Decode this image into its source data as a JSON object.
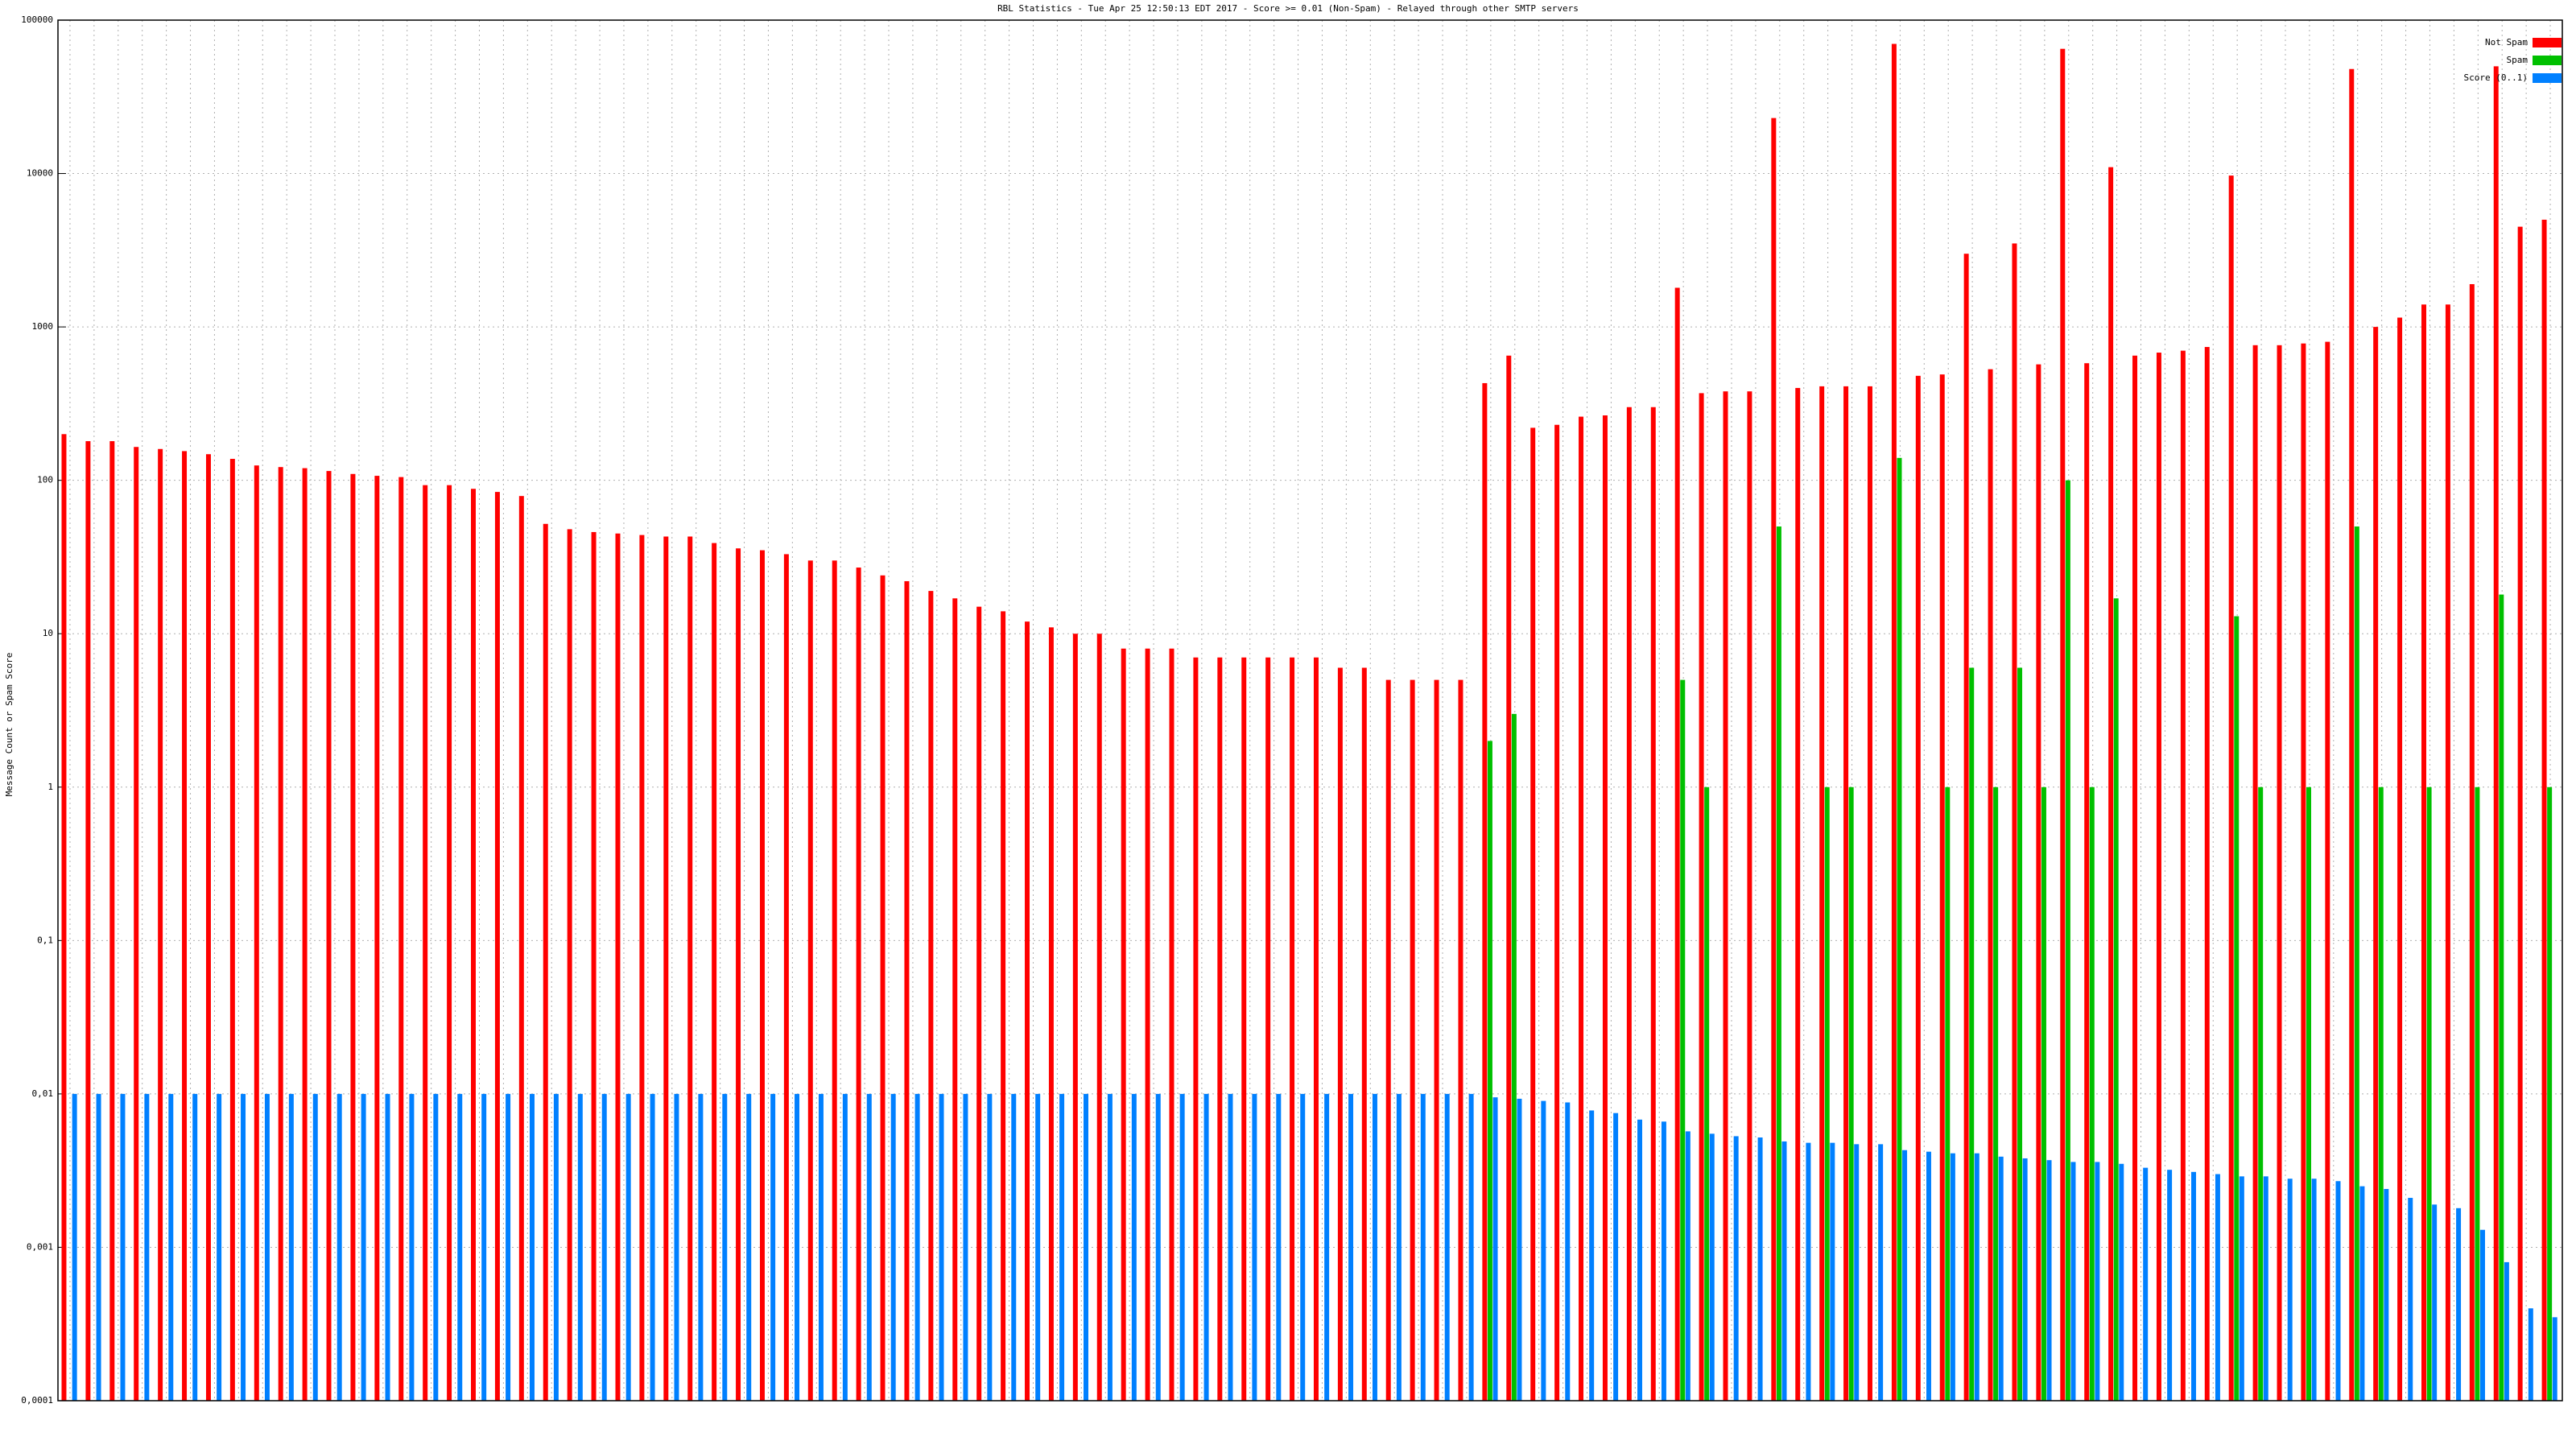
{
  "chart_data": {
    "type": "bar",
    "title": "RBL Statistics - Tue Apr 25 12:50:13 EDT 2017 - Score >= 0.01 (Non-Spam) - Relayed through other SMTP servers",
    "y_label": "Message Count or Spam Score",
    "log_y": true,
    "grid": true,
    "legend": "top-right",
    "ylim": [
      0.0001,
      100000
    ],
    "yticks": [
      {
        "value": 0.0001,
        "label": "0,0001"
      },
      {
        "value": 0.001,
        "label": "0,001"
      },
      {
        "value": 0.01,
        "label": "0,01"
      },
      {
        "value": 0.1,
        "label": "0,1"
      },
      1,
      10,
      100,
      1000,
      10000,
      100000
    ],
    "categories": [
      null,
      null,
      null,
      null,
      null,
      null,
      null,
      null,
      null,
      null,
      null,
      null,
      null,
      null,
      null,
      null,
      null,
      null,
      null,
      null,
      null,
      null,
      null,
      null,
      null,
      null,
      null,
      null,
      null,
      null,
      null,
      null,
      null,
      null,
      null,
      null,
      null,
      null,
      null,
      null,
      null,
      null,
      null,
      null,
      null,
      null,
      null,
      null,
      null,
      null,
      null,
      null,
      null,
      null,
      null,
      null,
      null,
      null,
      null,
      null,
      null,
      null,
      null,
      null,
      null,
      null,
      null,
      null,
      null,
      null,
      null,
      null,
      null,
      null,
      null,
      null,
      null,
      null,
      null,
      null,
      null,
      null,
      null,
      null,
      null,
      null,
      null,
      null,
      null,
      null,
      null,
      null,
      null,
      null,
      null,
      null,
      null,
      null,
      null,
      null,
      null,
      null,
      null,
      null
    ],
    "series": [
      {
        "name": "Not Spam",
        "color": "#ff0000",
        "values": [
          200,
          180,
          180,
          165,
          160,
          155,
          148,
          138,
          125,
          122,
          120,
          115,
          110,
          107,
          105,
          93,
          93,
          88,
          84,
          79,
          52,
          48,
          46,
          45,
          44,
          43,
          43,
          39,
          36,
          35,
          33,
          30,
          30,
          27,
          24,
          22,
          19,
          17,
          15,
          14,
          12,
          11,
          10,
          10,
          8,
          8,
          8,
          7,
          7,
          7,
          7,
          7,
          7,
          6,
          6,
          5,
          5,
          5,
          5,
          430,
          650,
          220,
          230,
          260,
          265,
          300,
          300,
          1800,
          370,
          380,
          380,
          23000,
          400,
          410,
          410,
          410,
          70000,
          480,
          490,
          3000,
          530,
          3500,
          570,
          65000,
          580,
          11000,
          650,
          680,
          700,
          740,
          9700,
          760,
          760,
          780,
          800,
          48000,
          1000,
          1150,
          1400,
          1400,
          1900,
          50000,
          4500,
          5000
        ]
      },
      {
        "name": "Spam",
        "color": "#00c000",
        "values": [
          null,
          null,
          null,
          null,
          null,
          null,
          null,
          null,
          null,
          null,
          null,
          null,
          null,
          null,
          null,
          null,
          null,
          null,
          null,
          null,
          null,
          null,
          null,
          null,
          null,
          null,
          null,
          null,
          null,
          null,
          null,
          null,
          null,
          null,
          null,
          null,
          null,
          null,
          null,
          null,
          null,
          null,
          null,
          null,
          null,
          null,
          null,
          null,
          null,
          null,
          null,
          null,
          null,
          null,
          null,
          null,
          null,
          null,
          null,
          2,
          3,
          null,
          null,
          null,
          null,
          null,
          null,
          5,
          1,
          null,
          null,
          50,
          null,
          1,
          1,
          null,
          140,
          null,
          1,
          6,
          1,
          6,
          1,
          100,
          1,
          17,
          null,
          null,
          null,
          null,
          13,
          1,
          null,
          1,
          null,
          50,
          1,
          null,
          1,
          null,
          1,
          18,
          null,
          1
        ]
      },
      {
        "name": "Score (0..1)",
        "color": "#0080ff",
        "values": [
          0.01,
          0.01,
          0.01,
          0.01,
          0.01,
          0.01,
          0.01,
          0.01,
          0.01,
          0.01,
          0.01,
          0.01,
          0.01,
          0.01,
          0.01,
          0.01,
          0.01,
          0.01,
          0.01,
          0.01,
          0.01,
          0.01,
          0.01,
          0.01,
          0.01,
          0.01,
          0.01,
          0.01,
          0.01,
          0.01,
          0.01,
          0.01,
          0.01,
          0.01,
          0.01,
          0.01,
          0.01,
          0.01,
          0.01,
          0.01,
          0.01,
          0.01,
          0.01,
          0.01,
          0.01,
          0.01,
          0.01,
          0.01,
          0.01,
          0.01,
          0.01,
          0.01,
          0.01,
          0.01,
          0.01,
          0.01,
          0.01,
          0.01,
          0.01,
          0.0095,
          0.0093,
          0.009,
          0.0088,
          0.0078,
          0.0075,
          0.0068,
          0.0066,
          0.0057,
          0.0055,
          0.0053,
          0.0052,
          0.0049,
          0.0048,
          0.0048,
          0.0047,
          0.0047,
          0.0043,
          0.0042,
          0.0041,
          0.0041,
          0.0039,
          0.0038,
          0.0037,
          0.0036,
          0.0036,
          0.0035,
          0.0033,
          0.0032,
          0.0031,
          0.003,
          0.0029,
          0.0029,
          0.0028,
          0.0028,
          0.0027,
          0.0025,
          0.0024,
          0.0021,
          0.0019,
          0.0018,
          0.0013,
          0.0008,
          0.0004,
          0.00035
        ]
      }
    ]
  }
}
